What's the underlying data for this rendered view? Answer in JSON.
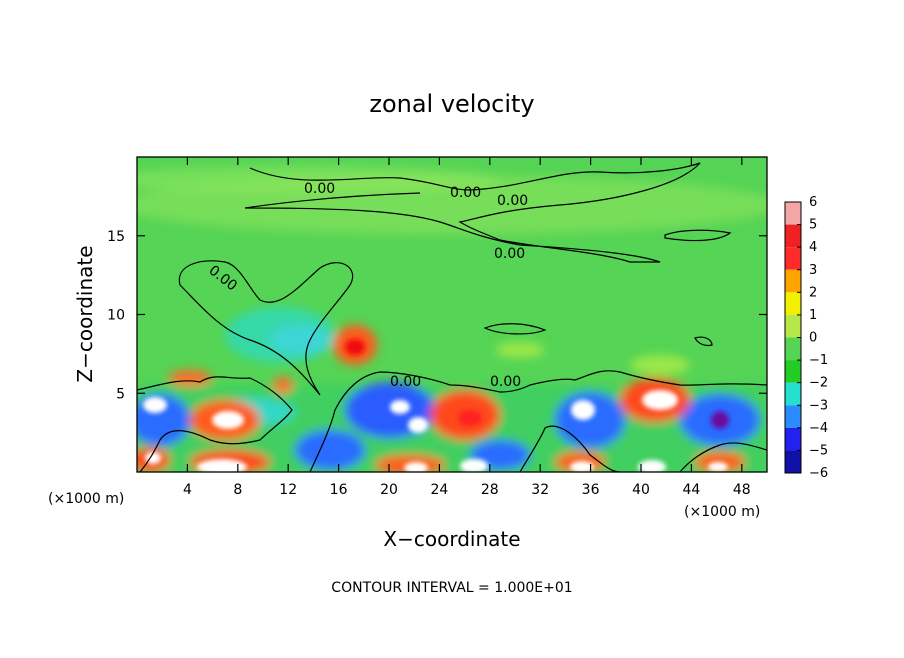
{
  "chart_data": {
    "type": "heatmap",
    "title": "zonal velocity",
    "xlabel": "X−coordinate",
    "ylabel": "Z−coordinate",
    "x_unit_left": "(×1000 m)",
    "x_unit_right": "(×1000 m)",
    "footer": "CONTOUR INTERVAL = 1.000E+01",
    "xlim": [
      0,
      50
    ],
    "ylim": [
      0,
      20
    ],
    "x_ticks": [
      4,
      8,
      12,
      16,
      20,
      24,
      28,
      32,
      36,
      40,
      44,
      48
    ],
    "y_ticks": [
      5,
      10,
      15
    ],
    "colorbar": {
      "levels": [
        6,
        5,
        4,
        3,
        2,
        1,
        0,
        -1,
        -2,
        -3,
        -4,
        -5,
        -6
      ],
      "labels": [
        "6",
        "5",
        "4",
        "3",
        "2",
        "1",
        "0",
        "−1",
        "−2",
        "−3",
        "−4",
        "−5",
        "−6"
      ],
      "colors": [
        "#f4a6a6",
        "#ee2222",
        "#ff2a2a",
        "#ffa500",
        "#f0f000",
        "#b6e84a",
        "#55d455",
        "#22cc22",
        "#25e0d0",
        "#2a8cff",
        "#2222ee",
        "#1111aa",
        "#6a0e9e"
      ]
    },
    "contour_label": "0.00",
    "contour_labels_count": 7,
    "background_color": "#55d455"
  }
}
